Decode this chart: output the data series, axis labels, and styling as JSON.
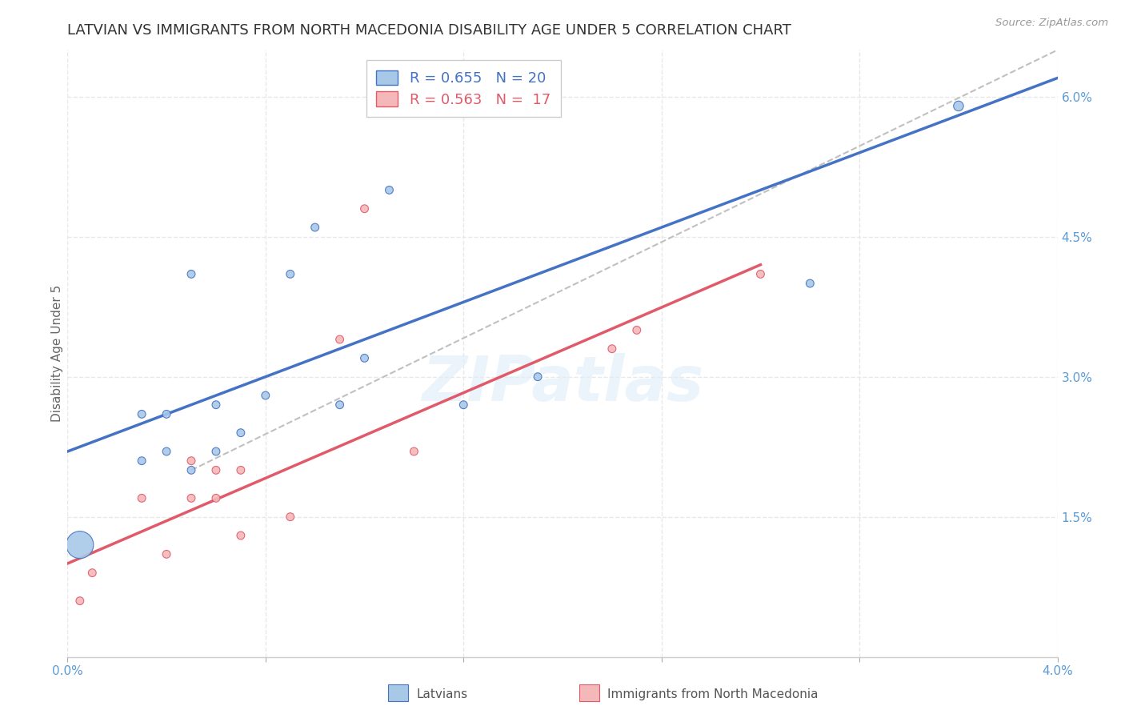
{
  "title": "LATVIAN VS IMMIGRANTS FROM NORTH MACEDONIA DISABILITY AGE UNDER 5 CORRELATION CHART",
  "source": "Source: ZipAtlas.com",
  "ylabel": "Disability Age Under 5",
  "xlim": [
    0.0,
    0.04
  ],
  "ylim": [
    0.0,
    0.065
  ],
  "x_ticks": [
    0.0,
    0.008,
    0.016,
    0.024,
    0.032,
    0.04
  ],
  "x_tick_labels": [
    "0.0%",
    "",
    "",
    "",
    "",
    "4.0%"
  ],
  "y_tick_labels_right": [
    "1.5%",
    "3.0%",
    "4.5%",
    "6.0%"
  ],
  "y_ticks_right": [
    0.015,
    0.03,
    0.045,
    0.06
  ],
  "latvian_R": 0.655,
  "latvian_N": 20,
  "immig_R": 0.563,
  "immig_N": 17,
  "latvian_color": "#a8c8e8",
  "immig_color": "#f4b8b8",
  "latvian_line_color": "#4472c4",
  "immig_line_color": "#e05a6a",
  "confidence_line_color": "#c0c0c0",
  "background_color": "#ffffff",
  "grid_color": "#e8e8e8",
  "latvian_x": [
    0.0005,
    0.003,
    0.003,
    0.004,
    0.004,
    0.005,
    0.005,
    0.006,
    0.006,
    0.007,
    0.008,
    0.009,
    0.01,
    0.011,
    0.012,
    0.013,
    0.016,
    0.019,
    0.03,
    0.036
  ],
  "latvian_y": [
    0.012,
    0.026,
    0.021,
    0.022,
    0.026,
    0.02,
    0.041,
    0.027,
    0.022,
    0.024,
    0.028,
    0.041,
    0.046,
    0.027,
    0.032,
    0.05,
    0.027,
    0.03,
    0.04,
    0.059
  ],
  "latvian_sizes": [
    600,
    50,
    50,
    50,
    50,
    50,
    50,
    50,
    50,
    50,
    50,
    50,
    50,
    50,
    50,
    50,
    50,
    50,
    50,
    80
  ],
  "immig_x": [
    0.0005,
    0.001,
    0.003,
    0.004,
    0.005,
    0.005,
    0.006,
    0.006,
    0.007,
    0.007,
    0.009,
    0.011,
    0.012,
    0.014,
    0.022,
    0.023,
    0.028
  ],
  "immig_y": [
    0.006,
    0.009,
    0.017,
    0.011,
    0.017,
    0.021,
    0.017,
    0.02,
    0.013,
    0.02,
    0.015,
    0.034,
    0.048,
    0.022,
    0.033,
    0.035,
    0.041
  ],
  "immig_sizes": [
    50,
    50,
    50,
    50,
    50,
    50,
    50,
    50,
    50,
    50,
    50,
    50,
    50,
    50,
    50,
    50,
    50
  ],
  "latvian_line_x": [
    0.0,
    0.04
  ],
  "latvian_line_y": [
    0.022,
    0.062
  ],
  "immig_line_x": [
    0.0,
    0.028
  ],
  "immig_line_y": [
    0.01,
    0.042
  ],
  "conf_line_x": [
    0.005,
    0.04
  ],
  "conf_line_y": [
    0.02,
    0.065
  ],
  "watermark": "ZIPatlas",
  "legend_label_latvian": "R = 0.655   N = 20",
  "legend_label_immig": "R = 0.563   N =  17",
  "bottom_legend_latvians": "Latvians",
  "bottom_legend_immig": "Immigrants from North Macedonia",
  "title_fontsize": 13,
  "axis_label_fontsize": 11,
  "tick_fontsize": 11,
  "legend_fontsize": 13
}
